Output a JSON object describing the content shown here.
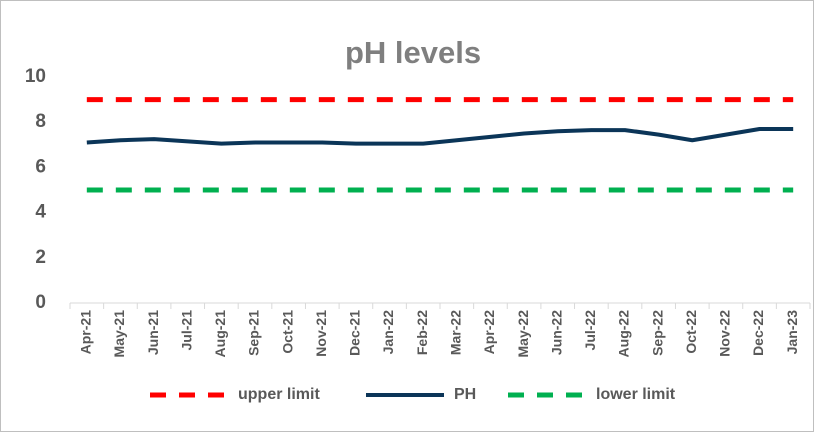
{
  "chart_data": {
    "type": "line",
    "title": "pH levels",
    "categories": [
      "Apr-21",
      "May-21",
      "Jun-21",
      "Jul-21",
      "Aug-21",
      "Sep-21",
      "Oct-21",
      "Nov-21",
      "Dec-21",
      "Jan-22",
      "Feb-22",
      "Mar-22",
      "Apr-22",
      "May-22",
      "Jun-22",
      "Jul-22",
      "Aug-22",
      "Sep-22",
      "Oct-22",
      "Nov-22",
      "Dec-22",
      "Jan-23"
    ],
    "series": [
      {
        "name": "upper limit",
        "color": "#ff0000",
        "dashed": true,
        "values": [
          9,
          9,
          9,
          9,
          9,
          9,
          9,
          9,
          9,
          9,
          9,
          9,
          9,
          9,
          9,
          9,
          9,
          9,
          9,
          9,
          9,
          9
        ]
      },
      {
        "name": "PH",
        "color": "#0b3558",
        "dashed": false,
        "values": [
          7.1,
          7.2,
          7.25,
          7.15,
          7.05,
          7.1,
          7.1,
          7.1,
          7.05,
          7.05,
          7.05,
          7.2,
          7.35,
          7.5,
          7.6,
          7.65,
          7.65,
          7.45,
          7.2,
          7.45,
          7.7,
          7.7
        ]
      },
      {
        "name": "lower limit",
        "color": "#00b050",
        "dashed": true,
        "values": [
          5,
          5,
          5,
          5,
          5,
          5,
          5,
          5,
          5,
          5,
          5,
          5,
          5,
          5,
          5,
          5,
          5,
          5,
          5,
          5,
          5,
          5
        ]
      }
    ],
    "ylim": [
      0,
      10
    ],
    "yticks": [
      0,
      2,
      4,
      6,
      8,
      10
    ],
    "grid": false,
    "legend": "bottom"
  }
}
